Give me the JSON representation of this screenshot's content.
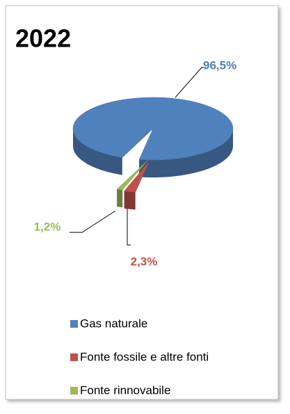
{
  "chart_data": {
    "type": "pie",
    "title": "2022",
    "categories": [
      "Gas naturale",
      "Fonte fossile e altre fonti",
      "Fonte rinnovabile"
    ],
    "values": [
      96.5,
      2.3,
      1.2
    ],
    "value_labels": [
      "96,5%",
      "2,3%",
      "1,2%"
    ],
    "colors": [
      "#4f81bd",
      "#c0504d",
      "#9bbb59"
    ],
    "legend": "bottom"
  }
}
